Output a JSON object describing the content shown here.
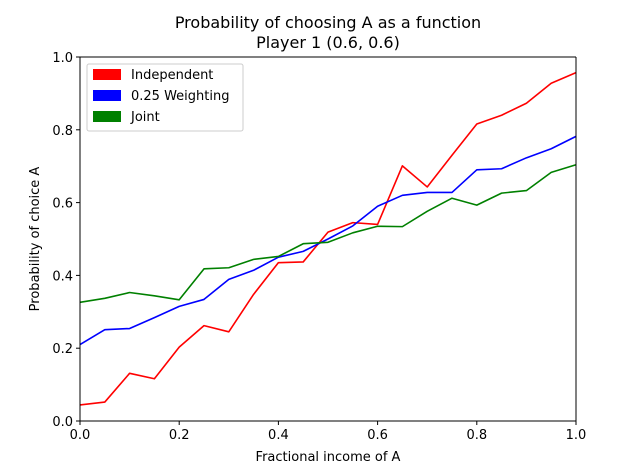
{
  "chart_data": {
    "type": "line",
    "title": "Probability of choosing A as a function",
    "subtitle": "Player 1 (0.6, 0.6)",
    "xlabel": "Fractional income of A",
    "ylabel": "Probability of choice A",
    "xlim": [
      0.0,
      1.0
    ],
    "ylim": [
      0.0,
      1.0
    ],
    "xticks": [
      "0.0",
      "0.2",
      "0.4",
      "0.6",
      "0.8",
      "1.0"
    ],
    "yticks": [
      "0.0",
      "0.2",
      "0.4",
      "0.6",
      "0.8",
      "1.0"
    ],
    "grid": false,
    "legend_position": "top-left",
    "x": [
      0.0,
      0.05,
      0.1,
      0.15,
      0.2,
      0.25,
      0.3,
      0.35,
      0.4,
      0.45,
      0.5,
      0.55,
      0.6,
      0.65,
      0.7,
      0.75,
      0.8,
      0.85,
      0.9,
      0.95,
      1.0
    ],
    "series": [
      {
        "name": "Independent",
        "color": "#ff0000",
        "values": [
          0.044,
          0.052,
          0.131,
          0.116,
          0.203,
          0.262,
          0.245,
          0.348,
          0.435,
          0.437,
          0.519,
          0.545,
          0.54,
          0.701,
          0.643,
          0.73,
          0.816,
          0.84,
          0.873,
          0.928,
          0.957
        ]
      },
      {
        "name": "0.25 Weighting",
        "color": "#0000ff",
        "values": [
          0.21,
          0.251,
          0.254,
          0.284,
          0.315,
          0.334,
          0.389,
          0.414,
          0.45,
          0.466,
          0.5,
          0.536,
          0.59,
          0.62,
          0.628,
          0.628,
          0.69,
          0.693,
          0.723,
          0.748,
          0.782
        ]
      },
      {
        "name": "Joint",
        "color": "#008000",
        "values": [
          0.326,
          0.337,
          0.353,
          0.344,
          0.333,
          0.418,
          0.421,
          0.444,
          0.452,
          0.487,
          0.491,
          0.517,
          0.535,
          0.534,
          0.576,
          0.612,
          0.593,
          0.626,
          0.633,
          0.683,
          0.704
        ]
      }
    ]
  }
}
